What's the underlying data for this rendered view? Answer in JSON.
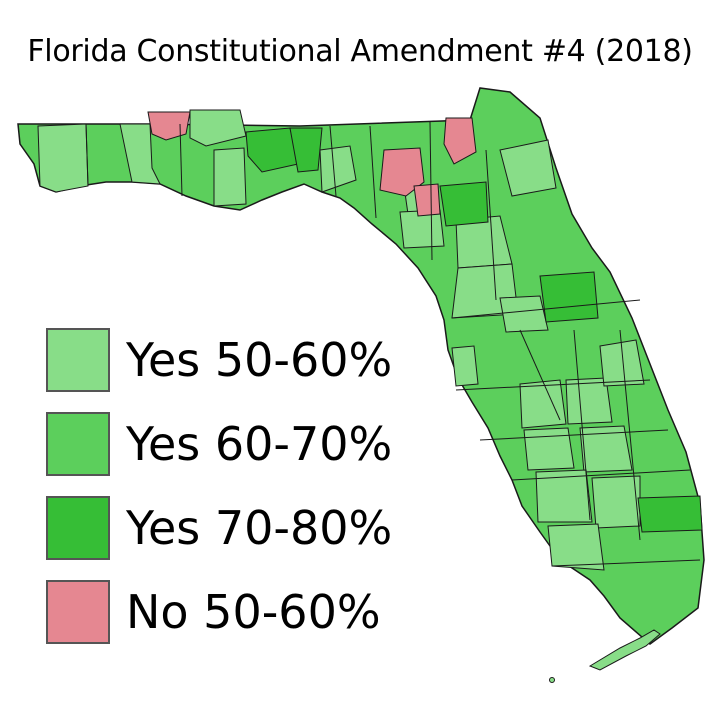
{
  "title": "Florida Constitutional Amendment #4 (2018)",
  "colors": {
    "yes_50_60": "#88dd88",
    "yes_60_70": "#5ccf5c",
    "yes_70_80": "#36be36",
    "no_50_60": "#e58791",
    "border": "#1a1a1a"
  },
  "legend": [
    {
      "label": "Yes 50-60%",
      "color": "#88dd88"
    },
    {
      "label": "Yes 60-70%",
      "color": "#5ccf5c"
    },
    {
      "label": "Yes 70-80%",
      "color": "#36be36"
    },
    {
      "label": "No 50-60%",
      "color": "#e58791"
    }
  ]
}
